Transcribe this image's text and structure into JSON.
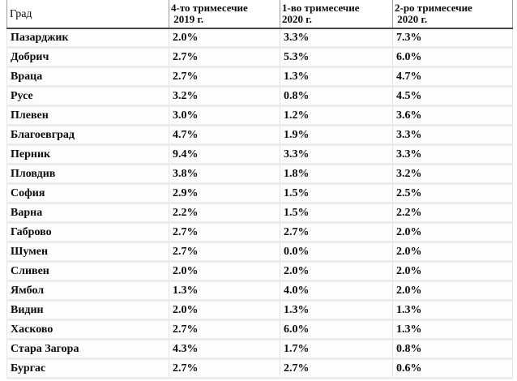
{
  "table": {
    "header": {
      "city": "Град",
      "columns": [
        {
          "label": "4-то тримесечие\n 2019 г."
        },
        {
          "label": "1-во тримесечие\n2020 г."
        },
        {
          "label": "2-ро тримесечие\n 2020 г."
        }
      ]
    },
    "rows": [
      {
        "city": "Пазарджик",
        "values": [
          "2.0%",
          "3.3%",
          "7.3%"
        ]
      },
      {
        "city": "Добрич",
        "values": [
          "2.7%",
          "5.3%",
          "6.0%"
        ]
      },
      {
        "city": "Враца",
        "values": [
          "2.7%",
          "1.3%",
          "4.7%"
        ]
      },
      {
        "city": "Русе",
        "values": [
          "3.2%",
          "0.8%",
          "4.5%"
        ]
      },
      {
        "city": "Плевен",
        "values": [
          "3.0%",
          "1.2%",
          "3.6%"
        ]
      },
      {
        "city": "Благоевград",
        "values": [
          "4.7%",
          "1.9%",
          "3.3%"
        ]
      },
      {
        "city": "Перник",
        "values": [
          "9.4%",
          "3.3%",
          "3.3%"
        ]
      },
      {
        "city": "Пловдив",
        "values": [
          "3.8%",
          "1.8%",
          "3.2%"
        ]
      },
      {
        "city": "София",
        "values": [
          "2.9%",
          "1.5%",
          "2.5%"
        ]
      },
      {
        "city": "Варна",
        "values": [
          "2.2%",
          "1.5%",
          "2.2%"
        ]
      },
      {
        "city": "Габрово",
        "values": [
          "2.7%",
          "2.7%",
          "2.0%"
        ]
      },
      {
        "city": "Шумен",
        "values": [
          "2.7%",
          "0.0%",
          "2.0%"
        ]
      },
      {
        "city": "Сливен",
        "values": [
          "2.0%",
          "2.0%",
          "2.0%"
        ]
      },
      {
        "city": "Ямбол",
        "values": [
          "1.3%",
          "4.0%",
          "2.0%"
        ]
      },
      {
        "city": "Видин",
        "values": [
          "2.0%",
          "1.3%",
          "1.3%"
        ]
      },
      {
        "city": "Хасково",
        "values": [
          "2.7%",
          "6.0%",
          "1.3%"
        ]
      },
      {
        "city": "Стара Загора",
        "values": [
          "4.3%",
          "1.7%",
          "0.8%"
        ]
      },
      {
        "city": "Бургас",
        "values": [
          "2.7%",
          "2.7%",
          "0.6%"
        ]
      }
    ]
  }
}
